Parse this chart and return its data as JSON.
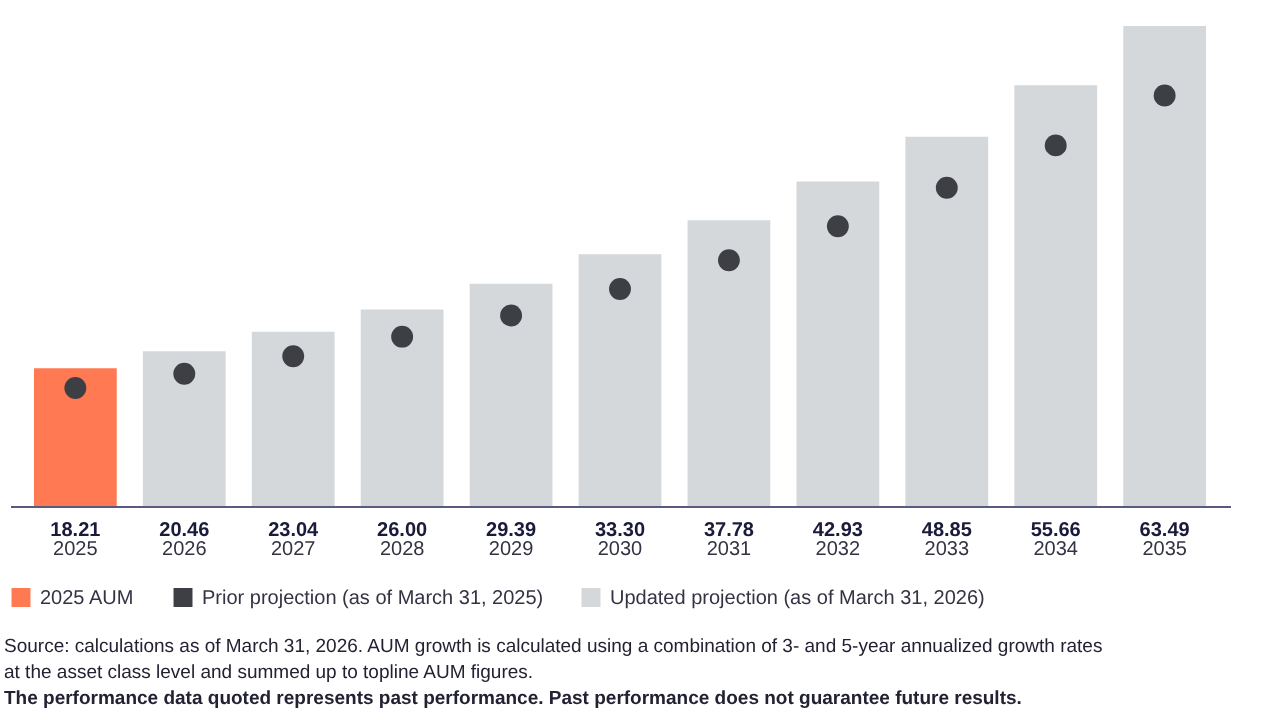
{
  "chart_data": {
    "type": "bar",
    "categories": [
      "2025",
      "2026",
      "2027",
      "2028",
      "2029",
      "2030",
      "2031",
      "2032",
      "2033",
      "2034",
      "2035"
    ],
    "series": [
      {
        "name": "2025 AUM",
        "type": "bar",
        "color": "#ff7a52",
        "values": [
          18.21,
          null,
          null,
          null,
          null,
          null,
          null,
          null,
          null,
          null,
          null
        ],
        "value_labels": [
          "18.21",
          null,
          null,
          null,
          null,
          null,
          null,
          null,
          null,
          null,
          null
        ]
      },
      {
        "name": "Prior projection (as of March 31, 2025)",
        "type": "scatter",
        "color": "#3d3f44",
        "values": [
          15.6,
          17.5,
          19.8,
          22.4,
          25.2,
          28.7,
          32.5,
          37.0,
          42.1,
          47.7,
          54.3
        ]
      },
      {
        "name": "Updated projection (as of March 31, 2026)",
        "type": "bar",
        "color": "#d5d8db",
        "values": [
          null,
          20.46,
          23.04,
          26.0,
          29.39,
          33.3,
          37.78,
          42.93,
          48.85,
          55.66,
          63.49
        ],
        "value_labels": [
          null,
          "20.46",
          "23.04",
          "26.00",
          "29.39",
          "33.30",
          "37.78",
          "42.93",
          "48.85",
          "55.66",
          "63.49"
        ]
      }
    ],
    "grid": false,
    "legend": "bottom left",
    "marker": "circle",
    "annotations": [
      "Source: calculations as of March 31, 2026. AUM growth is calculated using a combination of 3- and 5-year annualized growth rates at the asset class level and summed up to topline AUM figures.",
      "The performance data quoted represents past performance. Past performance does not guarantee future results."
    ]
  }
}
